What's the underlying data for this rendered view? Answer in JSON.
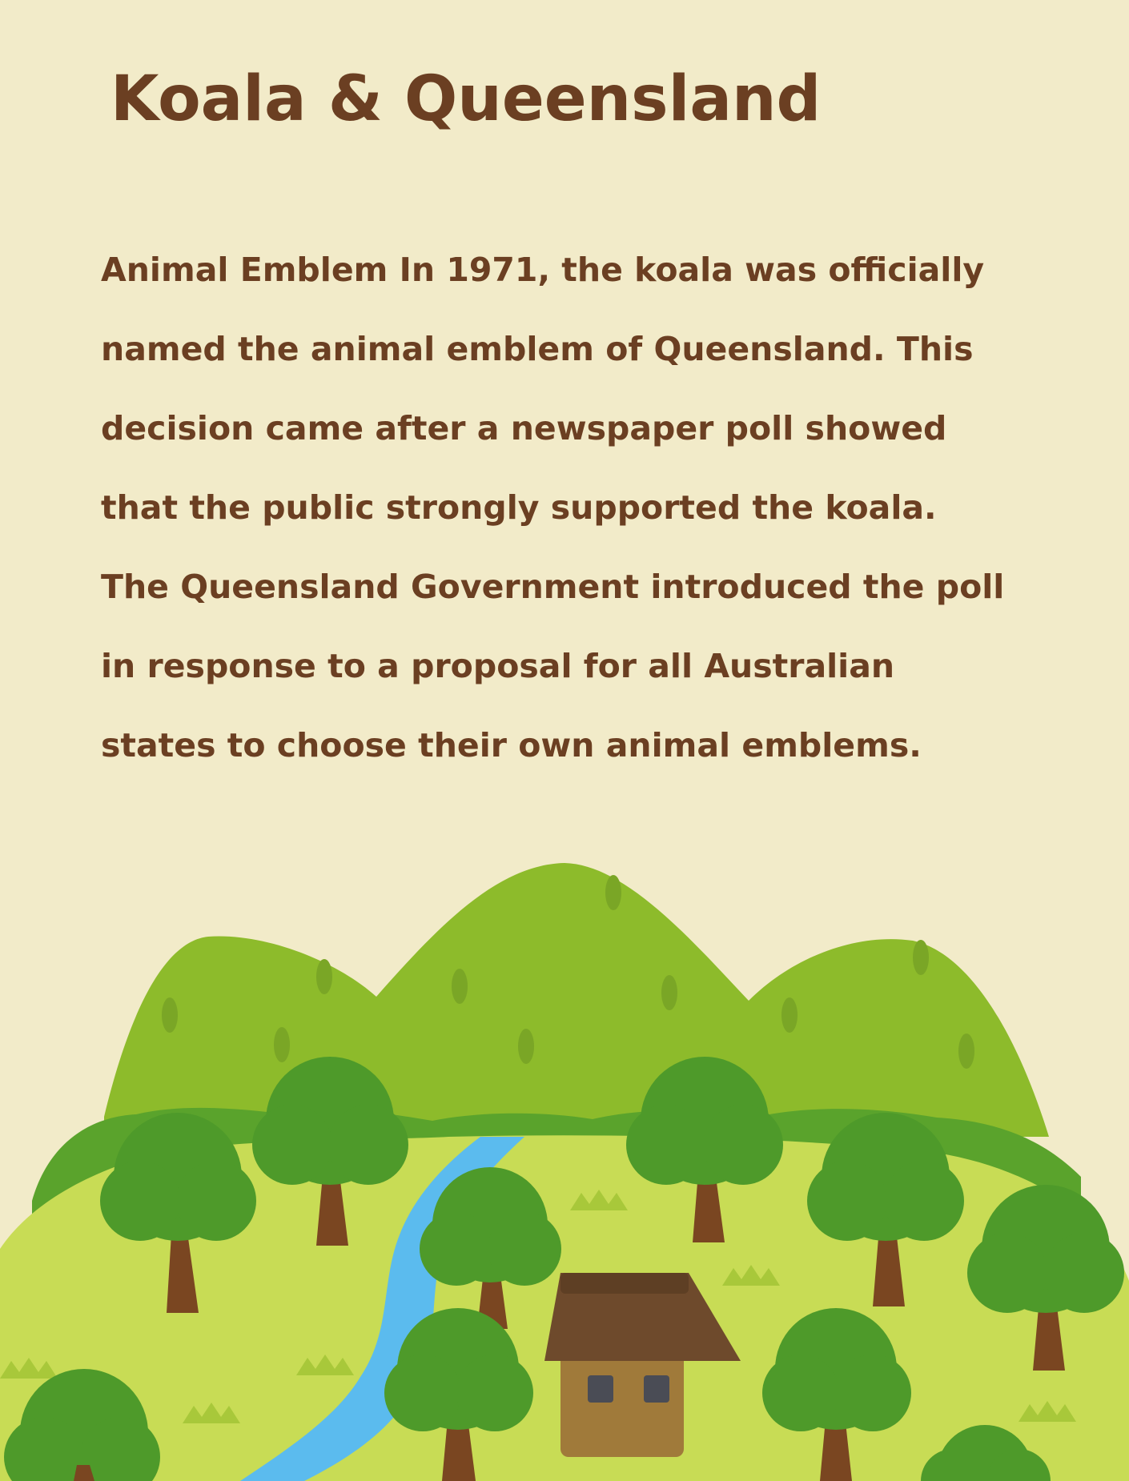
{
  "page": {
    "title": "Koala & Queensland",
    "paragraph_lines": [
      "Animal Emblem In 1971, the koala was officially",
      "named the animal emblem of Queensland. This",
      "decision came after a newspaper poll showed",
      "that the public strongly supported the koala.",
      "The Queensland Government introduced the poll",
      "in response to a proposal for all Australian",
      "states to choose their own animal emblems."
    ]
  },
  "colors": {
    "background": "#f2ebc9",
    "text": "#6b3f22",
    "mountain": "#8dbb2b",
    "meadow": "#c8dc55",
    "tree_canopy": "#4e9a2a",
    "trunk": "#7a4621",
    "river": "#5bbbee",
    "house_roof": "#6e4a2c",
    "house_wall": "#a07a3a"
  }
}
